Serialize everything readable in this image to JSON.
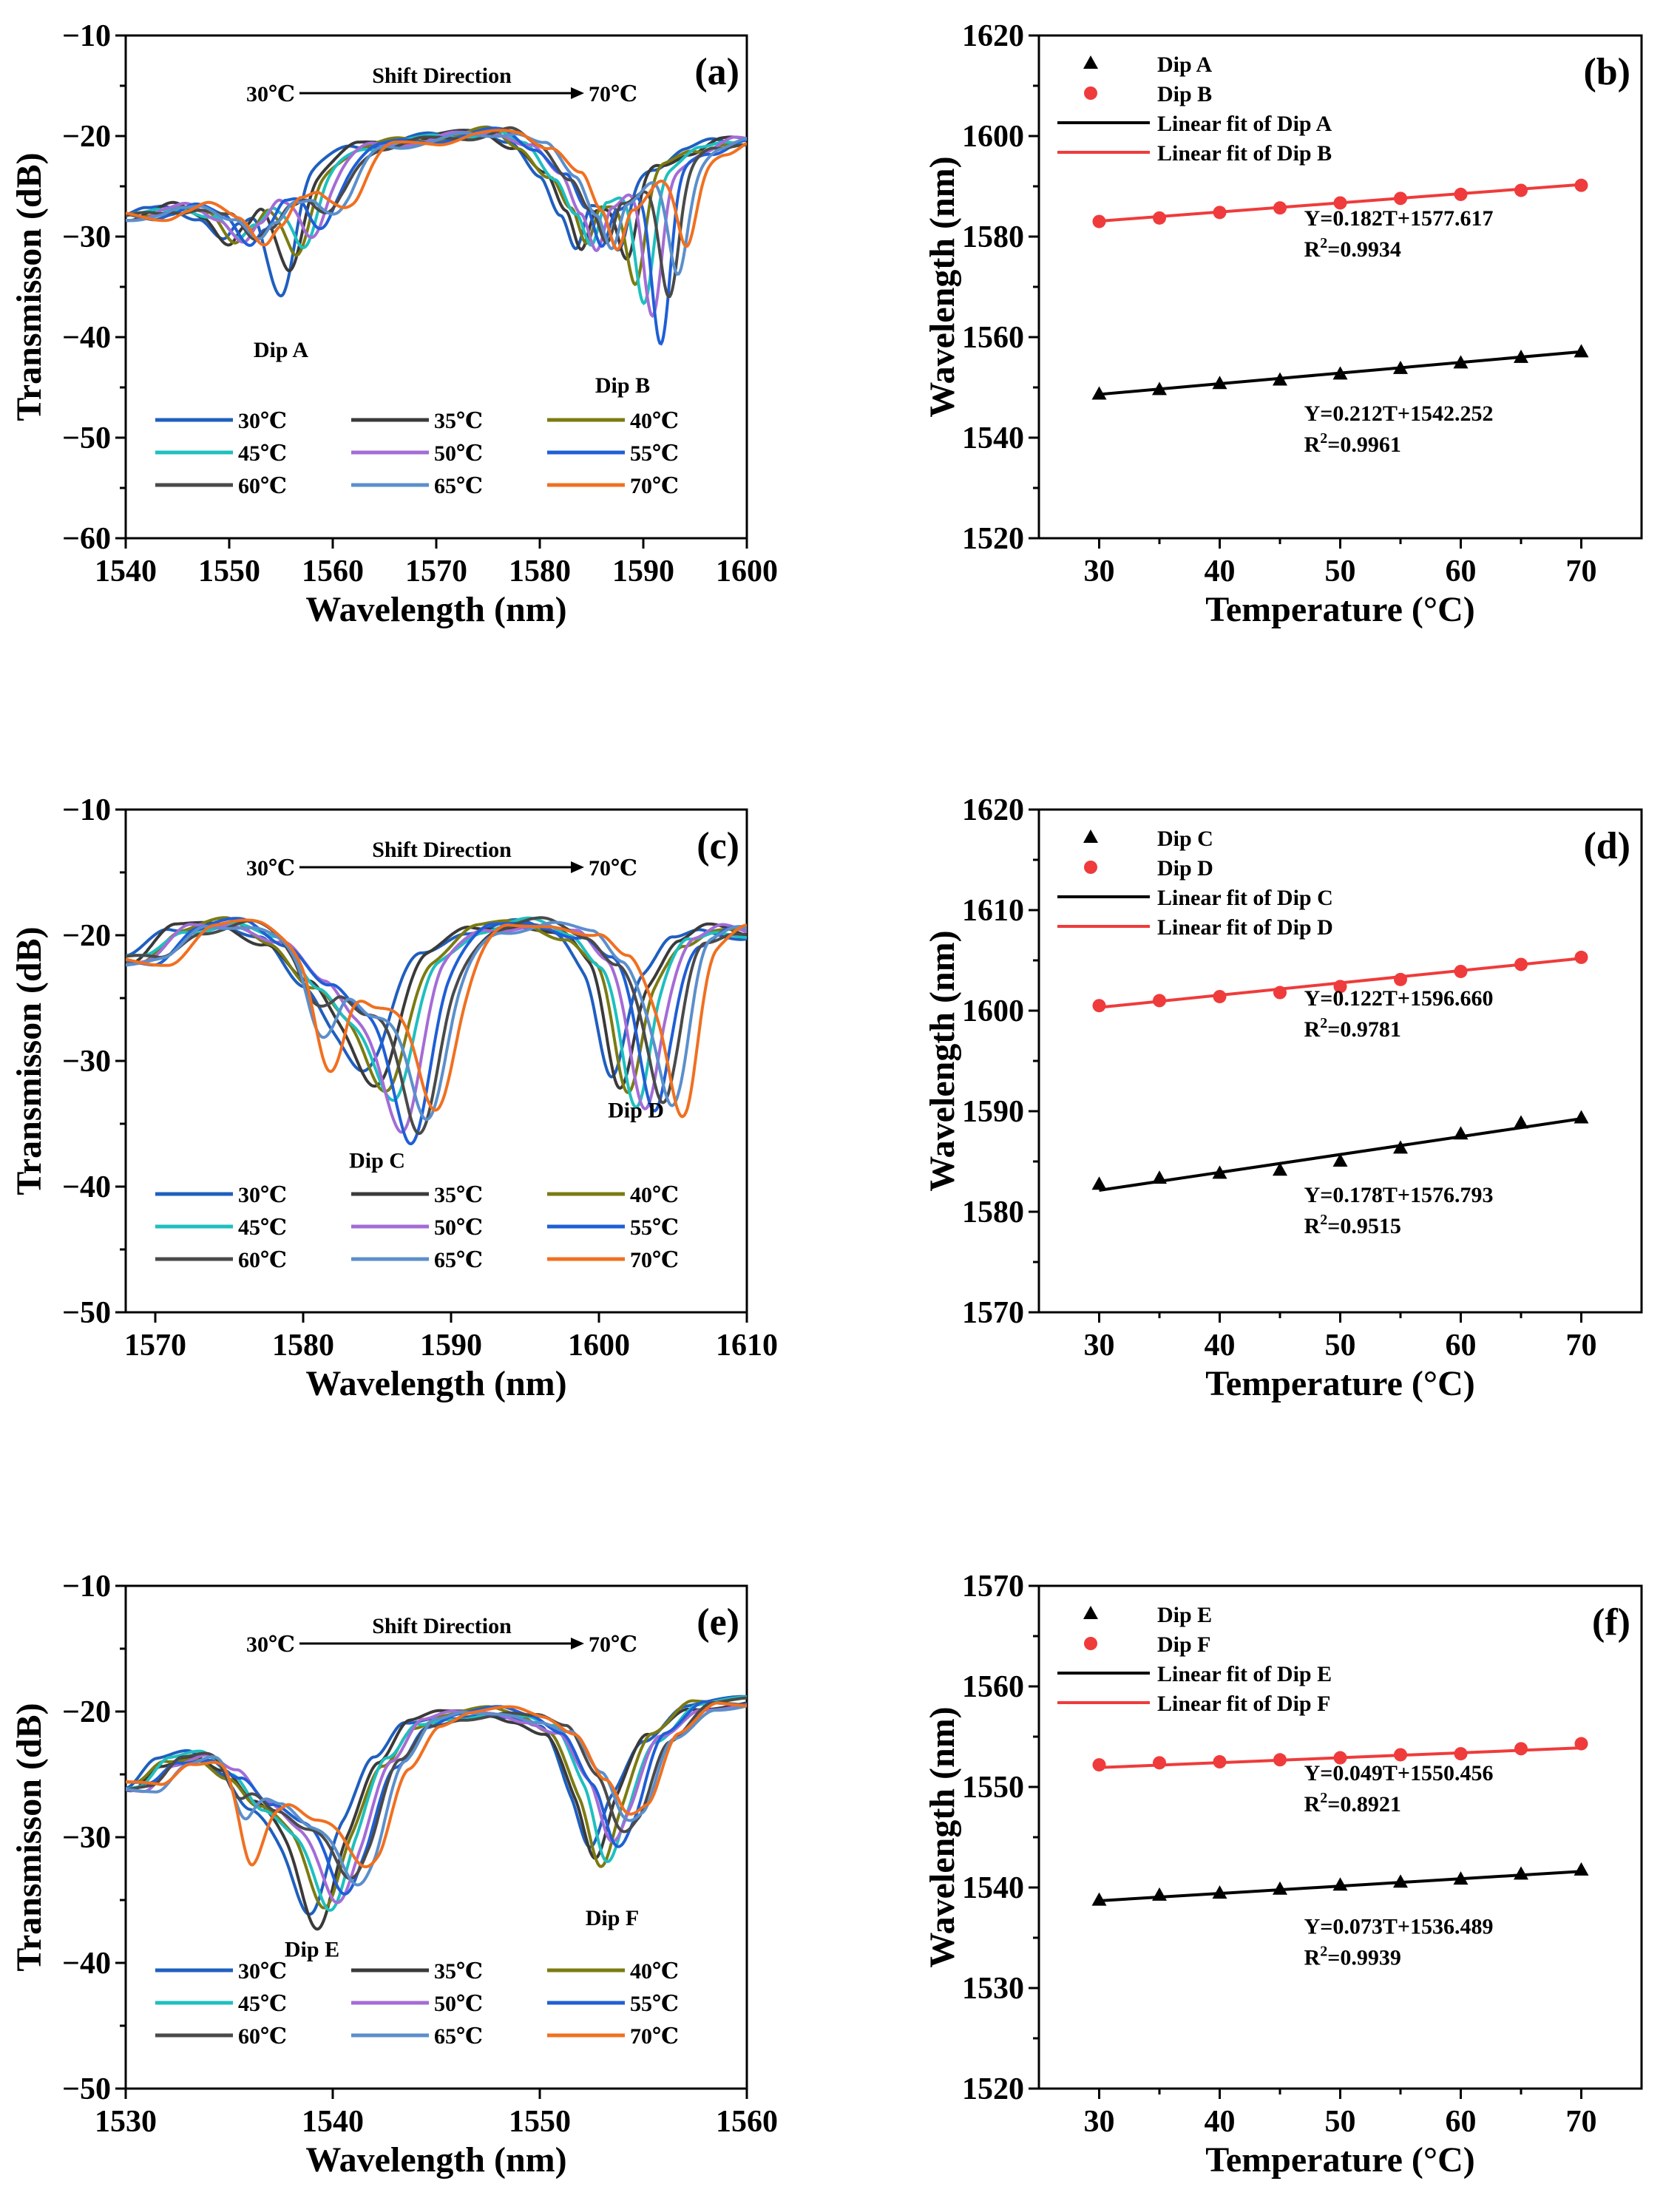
{
  "figure": {
    "panels": [
      "a",
      "b",
      "c",
      "d",
      "e",
      "f"
    ]
  },
  "chart_data": [
    {
      "id": "a",
      "type": "line",
      "label": "(a)",
      "xlabel": "Wavelength (nm)",
      "ylabel": "Transmisson (dB)",
      "xlim": [
        1540,
        1600
      ],
      "ylim": [
        -60,
        -10
      ],
      "xticks": [
        1540,
        1550,
        1560,
        1570,
        1580,
        1590,
        1600
      ],
      "yticks": [
        -60,
        -50,
        -40,
        -30,
        -20,
        -10
      ],
      "shift_text": "Shift Direction",
      "shift_from": "30℃",
      "shift_to": "70℃",
      "dip_labels": [
        {
          "text": "Dip A",
          "x": 1555,
          "y": -42
        },
        {
          "text": "Dip B",
          "x": 1588,
          "y": -45.5
        }
      ],
      "base": [
        [
          1540,
          -28
        ],
        [
          1542,
          -27.5
        ],
        [
          1544,
          -27
        ],
        [
          1547,
          -28
        ],
        [
          1549.5,
          -30.5
        ],
        [
          1551,
          -29
        ],
        [
          1553,
          -26.5
        ],
        [
          1555,
          -25.5
        ],
        [
          1558,
          -23
        ],
        [
          1562,
          -21
        ],
        [
          1566,
          -20.5
        ],
        [
          1570,
          -20
        ],
        [
          1574,
          -19.5
        ],
        [
          1577,
          -21
        ],
        [
          1580,
          -24
        ],
        [
          1582,
          -27.5
        ],
        [
          1583.5,
          -31
        ],
        [
          1585,
          -27
        ],
        [
          1588,
          -24.5
        ],
        [
          1591,
          -23
        ],
        [
          1594,
          -21.5
        ],
        [
          1597,
          -20.5
        ],
        [
          1600,
          -20.5
        ]
      ],
      "dips": [
        {
          "x": 1555,
          "w": 1.3,
          "depth": [
            10,
            8,
            7,
            6,
            5,
            5,
            4,
            4,
            3.5
          ]
        },
        {
          "x": 1587.6,
          "w": 0.9,
          "depth": [
            7,
            8,
            10,
            12,
            14,
            17,
            12,
            10,
            8
          ]
        }
      ],
      "drift": 0.165,
      "series": [
        {
          "name": "30℃",
          "color": "#1f5fbf"
        },
        {
          "name": "35℃",
          "color": "#3a3a3a"
        },
        {
          "name": "40℃",
          "color": "#7b7b12"
        },
        {
          "name": "45℃",
          "color": "#1fbfbf"
        },
        {
          "name": "50℃",
          "color": "#a46cd6"
        },
        {
          "name": "55℃",
          "color": "#1f5fd6"
        },
        {
          "name": "60℃",
          "color": "#4a4a4a"
        },
        {
          "name": "65℃",
          "color": "#5b8fcb"
        },
        {
          "name": "70℃",
          "color": "#f07020"
        }
      ]
    },
    {
      "id": "b",
      "type": "scatter",
      "label": "(b)",
      "xlabel": "Temperature (°C)",
      "ylabel": "Wavelength (nm)",
      "xlim": [
        25,
        75
      ],
      "ylim": [
        1520,
        1620
      ],
      "xticks": [
        30,
        40,
        50,
        60,
        70
      ],
      "minor_xticks": [
        35,
        45,
        55,
        65
      ],
      "yticks": [
        1520,
        1540,
        1560,
        1580,
        1600,
        1620
      ],
      "x": [
        30,
        35,
        40,
        45,
        50,
        55,
        60,
        65,
        70
      ],
      "series": [
        {
          "name": "Dip A",
          "marker": "triangle",
          "color": "#000000",
          "values": [
            1548.6,
            1549.5,
            1550.7,
            1551.4,
            1552.6,
            1553.7,
            1554.8,
            1555.9,
            1557.0
          ]
        },
        {
          "name": "Dip B",
          "marker": "circle",
          "color": "#ef3b3b",
          "values": [
            1583.0,
            1583.7,
            1584.8,
            1585.7,
            1586.7,
            1587.6,
            1588.4,
            1589.2,
            1590.2
          ]
        }
      ],
      "fits": [
        {
          "name": "Linear fit of Dip A",
          "color": "#000000",
          "slope": 0.212,
          "intercept": 1542.252,
          "eq": "Y=0.212T+1542.252",
          "r2_prefix": "R",
          "r2_sup": "2",
          "r2_value": "=0.9961"
        },
        {
          "name": "Linear fit of Dip B",
          "color": "#ef3b3b",
          "slope": 0.182,
          "intercept": 1577.617,
          "eq": "Y=0.182T+1577.617",
          "r2_prefix": "R",
          "r2_sup": "2",
          "r2_value": "=0.9934"
        }
      ]
    },
    {
      "id": "c",
      "type": "line",
      "label": "(c)",
      "xlabel": "Wavelength (nm)",
      "ylabel": "Transmisson (dB)",
      "xlim": [
        1568,
        1610
      ],
      "ylim": [
        -50,
        -10
      ],
      "xticks": [
        1570,
        1580,
        1590,
        1600,
        1610
      ],
      "yticks": [
        -50,
        -40,
        -30,
        -20,
        -10
      ],
      "shift_text": "Shift Direction",
      "shift_from": "30℃",
      "shift_to": "70℃",
      "dip_labels": [
        {
          "text": "Dip C",
          "x": 1585,
          "y": -38.5
        },
        {
          "text": "Dip D",
          "x": 1602.5,
          "y": -34.5
        }
      ],
      "base": [
        [
          1568,
          -22
        ],
        [
          1571,
          -19.5
        ],
        [
          1574,
          -19
        ],
        [
          1577,
          -20.5
        ],
        [
          1580,
          -24
        ],
        [
          1582,
          -26
        ],
        [
          1585,
          -24.5
        ],
        [
          1588,
          -21.5
        ],
        [
          1591,
          -19.5
        ],
        [
          1594,
          -19
        ],
        [
          1597,
          -20
        ],
        [
          1599,
          -22
        ],
        [
          1601,
          -25
        ],
        [
          1603,
          -23
        ],
        [
          1605,
          -20.5
        ],
        [
          1607,
          -19.5
        ],
        [
          1610,
          -20
        ]
      ],
      "dips": [
        {
          "x": 1584.3,
          "w": 1.3,
          "depth": [
            6,
            7,
            8,
            9,
            11,
            12,
            12,
            11,
            10
          ]
        },
        {
          "x": 1600.8,
          "w": 0.9,
          "depth": [
            6,
            7,
            8,
            9,
            9,
            10,
            10,
            10,
            11
          ]
        },
        {
          "x": 1576.8,
          "w": 1.0,
          "depth": [
            0,
            0,
            0,
            0,
            0,
            0,
            3,
            6,
            8
          ]
        }
      ],
      "drift": 0.122,
      "series": [
        {
          "name": "30℃",
          "color": "#1f5fbf"
        },
        {
          "name": "35℃",
          "color": "#3a3a3a"
        },
        {
          "name": "40℃",
          "color": "#7b7b12"
        },
        {
          "name": "45℃",
          "color": "#1fbfbf"
        },
        {
          "name": "50℃",
          "color": "#a46cd6"
        },
        {
          "name": "55℃",
          "color": "#1f5fd6"
        },
        {
          "name": "60℃",
          "color": "#4a4a4a"
        },
        {
          "name": "65℃",
          "color": "#5b8fcb"
        },
        {
          "name": "70℃",
          "color": "#f07020"
        }
      ]
    },
    {
      "id": "d",
      "type": "scatter",
      "label": "(d)",
      "xlabel": "Temperature (°C)",
      "ylabel": "Wavelength (nm)",
      "xlim": [
        25,
        75
      ],
      "ylim": [
        1570,
        1620
      ],
      "xticks": [
        30,
        40,
        50,
        60,
        70
      ],
      "minor_xticks": [
        35,
        45,
        55,
        65
      ],
      "yticks": [
        1570,
        1580,
        1590,
        1600,
        1610,
        1620
      ],
      "x": [
        30,
        35,
        40,
        45,
        50,
        55,
        60,
        65,
        70
      ],
      "series": [
        {
          "name": "Dip C",
          "marker": "triangle",
          "color": "#000000",
          "values": [
            1582.7,
            1583.3,
            1583.8,
            1584.1,
            1585.0,
            1586.3,
            1587.7,
            1588.8,
            1589.3
          ]
        },
        {
          "name": "Dip D",
          "marker": "circle",
          "color": "#ef3b3b",
          "values": [
            1600.5,
            1601.0,
            1601.4,
            1601.8,
            1602.4,
            1603.1,
            1603.9,
            1604.6,
            1605.3
          ]
        }
      ],
      "fits": [
        {
          "name": "Linear fit of Dip C",
          "color": "#000000",
          "slope": 0.178,
          "intercept": 1576.793,
          "eq": "Y=0.178T+1576.793",
          "r2_prefix": "R",
          "r2_sup": "2",
          "r2_value": "=0.9515"
        },
        {
          "name": "Linear fit of Dip D",
          "color": "#ef3b3b",
          "slope": 0.122,
          "intercept": 1596.66,
          "eq": "Y=0.122T+1596.660",
          "r2_prefix": "R",
          "r2_sup": "2",
          "r2_value": "=0.9781"
        }
      ]
    },
    {
      "id": "e",
      "type": "line",
      "label": "(e)",
      "xlabel": "Wavelength (nm)",
      "ylabel": "Transmisson (dB)",
      "xlim": [
        1530,
        1560
      ],
      "ylim": [
        -50,
        -10
      ],
      "xticks": [
        1530,
        1540,
        1550,
        1560
      ],
      "yticks": [
        -50,
        -40,
        -30,
        -20,
        -10
      ],
      "shift_text": "Shift Direction",
      "shift_from": "30℃",
      "shift_to": "70℃",
      "dip_labels": [
        {
          "text": "Dip E",
          "x": 1539,
          "y": -39.5
        },
        {
          "text": "Dip F",
          "x": 1553.5,
          "y": -37
        }
      ],
      "base": [
        [
          1530,
          -26
        ],
        [
          1531.5,
          -24
        ],
        [
          1533,
          -23.5
        ],
        [
          1534.5,
          -25
        ],
        [
          1536,
          -27.5
        ],
        [
          1537.5,
          -29
        ],
        [
          1539,
          -29
        ],
        [
          1540.5,
          -28
        ],
        [
          1542,
          -24
        ],
        [
          1543.5,
          -21
        ],
        [
          1545,
          -20.3
        ],
        [
          1547,
          -20
        ],
        [
          1548.5,
          -20.5
        ],
        [
          1550,
          -21.5
        ],
        [
          1551.5,
          -25
        ],
        [
          1552.5,
          -27
        ],
        [
          1553.5,
          -25.5
        ],
        [
          1555,
          -22
        ],
        [
          1557,
          -19.5
        ],
        [
          1560,
          -19.2
        ]
      ],
      "dips": [
        {
          "x": 1538.9,
          "w": 0.8,
          "depth": [
            7,
            8,
            7,
            7,
            6,
            6,
            5,
            5,
            4
          ]
        },
        {
          "x": 1552.3,
          "w": 0.7,
          "depth": [
            4,
            5,
            5,
            5,
            4,
            4,
            3,
            3,
            2
          ]
        },
        {
          "x": 1533.3,
          "w": 0.6,
          "depth": [
            0,
            0,
            0,
            0,
            0,
            0,
            2,
            4,
            7
          ]
        }
      ],
      "drift": 0.07,
      "series": [
        {
          "name": "30℃",
          "color": "#1f5fbf"
        },
        {
          "name": "35℃",
          "color": "#3a3a3a"
        },
        {
          "name": "40℃",
          "color": "#7b7b12"
        },
        {
          "name": "45℃",
          "color": "#1fbfbf"
        },
        {
          "name": "50℃",
          "color": "#a46cd6"
        },
        {
          "name": "55℃",
          "color": "#1f5fd6"
        },
        {
          "name": "60℃",
          "color": "#4a4a4a"
        },
        {
          "name": "65℃",
          "color": "#5b8fcb"
        },
        {
          "name": "70℃",
          "color": "#f07020"
        }
      ]
    },
    {
      "id": "f",
      "type": "scatter",
      "label": "(f)",
      "xlabel": "Temperature (°C)",
      "ylabel": "Wavelength (nm)",
      "xlim": [
        25,
        75
      ],
      "ylim": [
        1520,
        1570
      ],
      "xticks": [
        30,
        40,
        50,
        60,
        70
      ],
      "minor_xticks": [
        35,
        45,
        55,
        65
      ],
      "yticks": [
        1520,
        1530,
        1540,
        1550,
        1560,
        1570
      ],
      "x": [
        30,
        35,
        40,
        45,
        50,
        55,
        60,
        65,
        70
      ],
      "series": [
        {
          "name": "Dip E",
          "marker": "triangle",
          "color": "#000000",
          "values": [
            1538.7,
            1539.2,
            1539.4,
            1539.8,
            1540.2,
            1540.5,
            1540.8,
            1541.3,
            1541.7
          ]
        },
        {
          "name": "Dip F",
          "marker": "circle",
          "color": "#ef3b3b",
          "values": [
            1552.2,
            1552.4,
            1552.5,
            1552.7,
            1552.9,
            1553.2,
            1553.3,
            1553.8,
            1554.3
          ]
        }
      ],
      "fits": [
        {
          "name": "Linear fit of Dip E",
          "color": "#000000",
          "slope": 0.073,
          "intercept": 1536.489,
          "eq": "Y=0.073T+1536.489",
          "r2_prefix": "R",
          "r2_sup": "2",
          "r2_value": "=0.9939"
        },
        {
          "name": "Linear fit of Dip F",
          "color": "#ef3b3b",
          "slope": 0.049,
          "intercept": 1550.456,
          "eq": "Y=0.049T+1550.456",
          "r2_prefix": "R",
          "r2_sup": "2",
          "r2_value": "=0.8921"
        }
      ]
    }
  ]
}
